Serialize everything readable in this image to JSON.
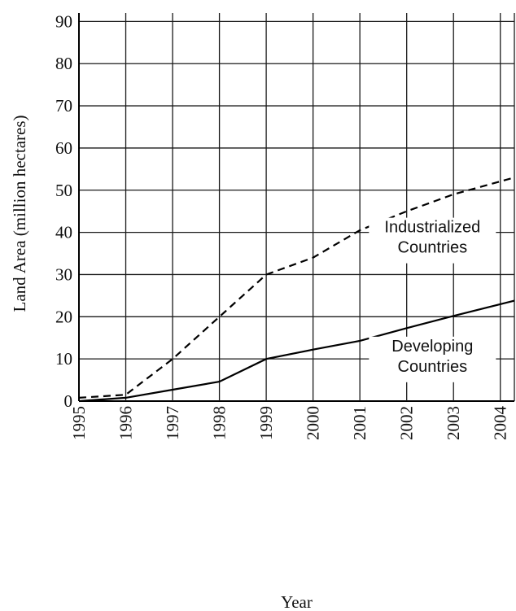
{
  "chart_data": {
    "type": "line",
    "title": "",
    "xlabel": "Year",
    "ylabel": "Land Area (million hectares)",
    "x": [
      1995,
      1996,
      1997,
      1998,
      1999,
      2000,
      2001,
      2002,
      2003,
      2004
    ],
    "x_tick_labels": [
      "1995",
      "1996",
      "1997",
      "1998",
      "1999",
      "2000",
      "2001",
      "2002",
      "2003",
      "2004"
    ],
    "xlim": [
      1995,
      2004.3
    ],
    "ylim": [
      0,
      92
    ],
    "y_ticks": [
      0,
      10,
      20,
      30,
      40,
      50,
      60,
      70,
      80,
      90
    ],
    "y_tick_labels": [
      "0",
      "10",
      "20",
      "30",
      "40",
      "50",
      "60",
      "70",
      "80",
      "90"
    ],
    "grid": true,
    "series": [
      {
        "name": "Industrialized Countries",
        "label_lines": [
          "Industrialized",
          "Countries"
        ],
        "style": "dashed",
        "color": "#000000",
        "x": [
          1995,
          1996,
          1997,
          1998,
          1999,
          2000,
          2001,
          2002,
          2003,
          2004.3
        ],
        "values": [
          0.8,
          1.5,
          10,
          20,
          30,
          34,
          40.5,
          45,
          49,
          53
        ]
      },
      {
        "name": "Developing Countries",
        "label_lines": [
          "Developing",
          "Countries"
        ],
        "style": "solid",
        "color": "#000000",
        "x": [
          1995,
          1996,
          1997,
          1998,
          1999,
          2000,
          2001,
          2002,
          2003,
          2004.3
        ],
        "values": [
          0,
          0.8,
          2.7,
          4.6,
          10,
          12.2,
          14.3,
          17.3,
          20.2,
          23.8
        ]
      }
    ]
  }
}
